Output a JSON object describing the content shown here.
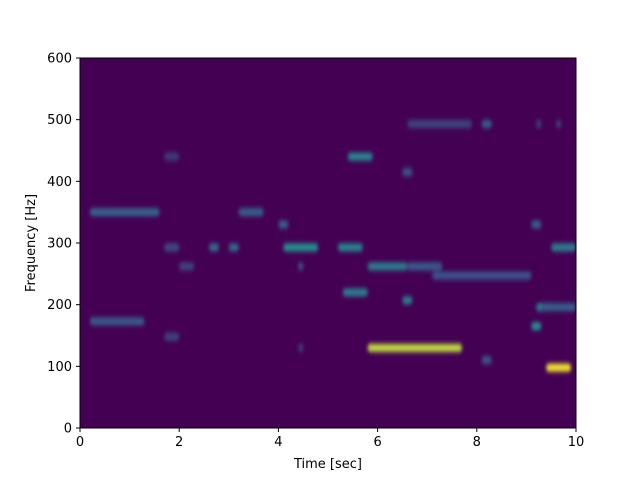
{
  "chart_data": {
    "type": "heatmap",
    "title": "",
    "xlabel": "Time [sec]",
    "ylabel": "Frequency [Hz]",
    "xlim": [
      0,
      10
    ],
    "ylim": [
      0,
      600
    ],
    "x_ticks": [
      0,
      2,
      4,
      6,
      8,
      10
    ],
    "y_ticks": [
      0,
      100,
      200,
      300,
      400,
      500,
      600
    ],
    "colormap": "viridis",
    "background_color": "#440154",
    "grid": false,
    "legend": "none",
    "bands": [
      {
        "t_start": 0.2,
        "t_end": 1.6,
        "freq": 350,
        "intensity": 0.32
      },
      {
        "t_start": 0.2,
        "t_end": 1.3,
        "freq": 173,
        "intensity": 0.28
      },
      {
        "t_start": 1.7,
        "t_end": 2.0,
        "freq": 440,
        "intensity": 0.18
      },
      {
        "t_start": 1.7,
        "t_end": 2.0,
        "freq": 148,
        "intensity": 0.2
      },
      {
        "t_start": 1.7,
        "t_end": 2.0,
        "freq": 293,
        "intensity": 0.22
      },
      {
        "t_start": 2.0,
        "t_end": 2.3,
        "freq": 262,
        "intensity": 0.2
      },
      {
        "t_start": 2.6,
        "t_end": 2.8,
        "freq": 293,
        "intensity": 0.35
      },
      {
        "t_start": 3.0,
        "t_end": 3.2,
        "freq": 293,
        "intensity": 0.35
      },
      {
        "t_start": 3.2,
        "t_end": 3.7,
        "freq": 350,
        "intensity": 0.3
      },
      {
        "t_start": 4.0,
        "t_end": 4.2,
        "freq": 330,
        "intensity": 0.3
      },
      {
        "t_start": 4.1,
        "t_end": 4.8,
        "freq": 293,
        "intensity": 0.5
      },
      {
        "t_start": 4.4,
        "t_end": 4.5,
        "freq": 262,
        "intensity": 0.25
      },
      {
        "t_start": 4.4,
        "t_end": 4.5,
        "freq": 130,
        "intensity": 0.2
      },
      {
        "t_start": 5.2,
        "t_end": 5.7,
        "freq": 293,
        "intensity": 0.45
      },
      {
        "t_start": 5.3,
        "t_end": 5.8,
        "freq": 220,
        "intensity": 0.42
      },
      {
        "t_start": 5.4,
        "t_end": 5.9,
        "freq": 440,
        "intensity": 0.45
      },
      {
        "t_start": 5.8,
        "t_end": 6.6,
        "freq": 262,
        "intensity": 0.42
      },
      {
        "t_start": 5.8,
        "t_end": 7.7,
        "freq": 130,
        "intensity": 0.9
      },
      {
        "t_start": 6.5,
        "t_end": 6.7,
        "freq": 207,
        "intensity": 0.42
      },
      {
        "t_start": 6.5,
        "t_end": 6.7,
        "freq": 415,
        "intensity": 0.25
      },
      {
        "t_start": 6.6,
        "t_end": 7.3,
        "freq": 262,
        "intensity": 0.28
      },
      {
        "t_start": 7.1,
        "t_end": 9.1,
        "freq": 247,
        "intensity": 0.25
      },
      {
        "t_start": 6.6,
        "t_end": 7.9,
        "freq": 493,
        "intensity": 0.2
      },
      {
        "t_start": 8.1,
        "t_end": 8.3,
        "freq": 493,
        "intensity": 0.3
      },
      {
        "t_start": 8.1,
        "t_end": 8.3,
        "freq": 110,
        "intensity": 0.25
      },
      {
        "t_start": 9.1,
        "t_end": 9.3,
        "freq": 165,
        "intensity": 0.5
      },
      {
        "t_start": 9.1,
        "t_end": 9.3,
        "freq": 330,
        "intensity": 0.3
      },
      {
        "t_start": 9.2,
        "t_end": 9.5,
        "freq": 196,
        "intensity": 0.45
      },
      {
        "t_start": 9.3,
        "t_end": 10.0,
        "freq": 196,
        "intensity": 0.3
      },
      {
        "t_start": 9.4,
        "t_end": 9.9,
        "freq": 98,
        "intensity": 0.98
      },
      {
        "t_start": 9.5,
        "t_end": 10.0,
        "freq": 293,
        "intensity": 0.42
      },
      {
        "t_start": 9.2,
        "t_end": 9.3,
        "freq": 493,
        "intensity": 0.2
      },
      {
        "t_start": 9.6,
        "t_end": 9.7,
        "freq": 493,
        "intensity": 0.2
      }
    ]
  }
}
